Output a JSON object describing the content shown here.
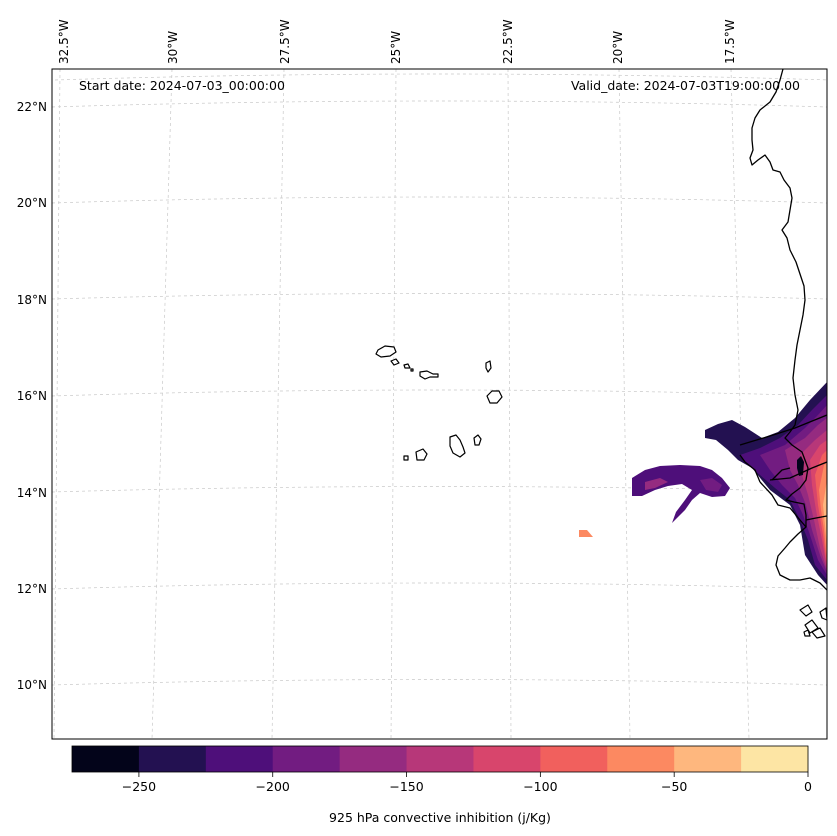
{
  "header": {
    "start_date": "Start date: 2024-07-03_00:00:00",
    "valid_date": "Valid_date: 2024-07-03T19:00:00.00"
  },
  "axes": {
    "lon_labels": [
      "32.5°W",
      "30°W",
      "27.5°W",
      "25°W",
      "22.5°W",
      "20°W",
      "17.5°W"
    ],
    "lat_labels": [
      "22°N",
      "20°N",
      "18°N",
      "16°N",
      "14°N",
      "12°N",
      "10°N"
    ]
  },
  "colorbar": {
    "label": "925 hPa convective inhibition (j/Kg)",
    "tick_labels": [
      "−250",
      "−200",
      "−150",
      "−100",
      "−50",
      "0"
    ],
    "ticks": [
      -250,
      -200,
      -150,
      -100,
      -50,
      0
    ],
    "min": -275,
    "max": 0,
    "colors": [
      "#03041a",
      "#231151",
      "#4e0f7a",
      "#721c81",
      "#952b80",
      "#b73779",
      "#d8456c",
      "#f1605d",
      "#fc8961",
      "#feb77e",
      "#fde5a4"
    ]
  }
}
